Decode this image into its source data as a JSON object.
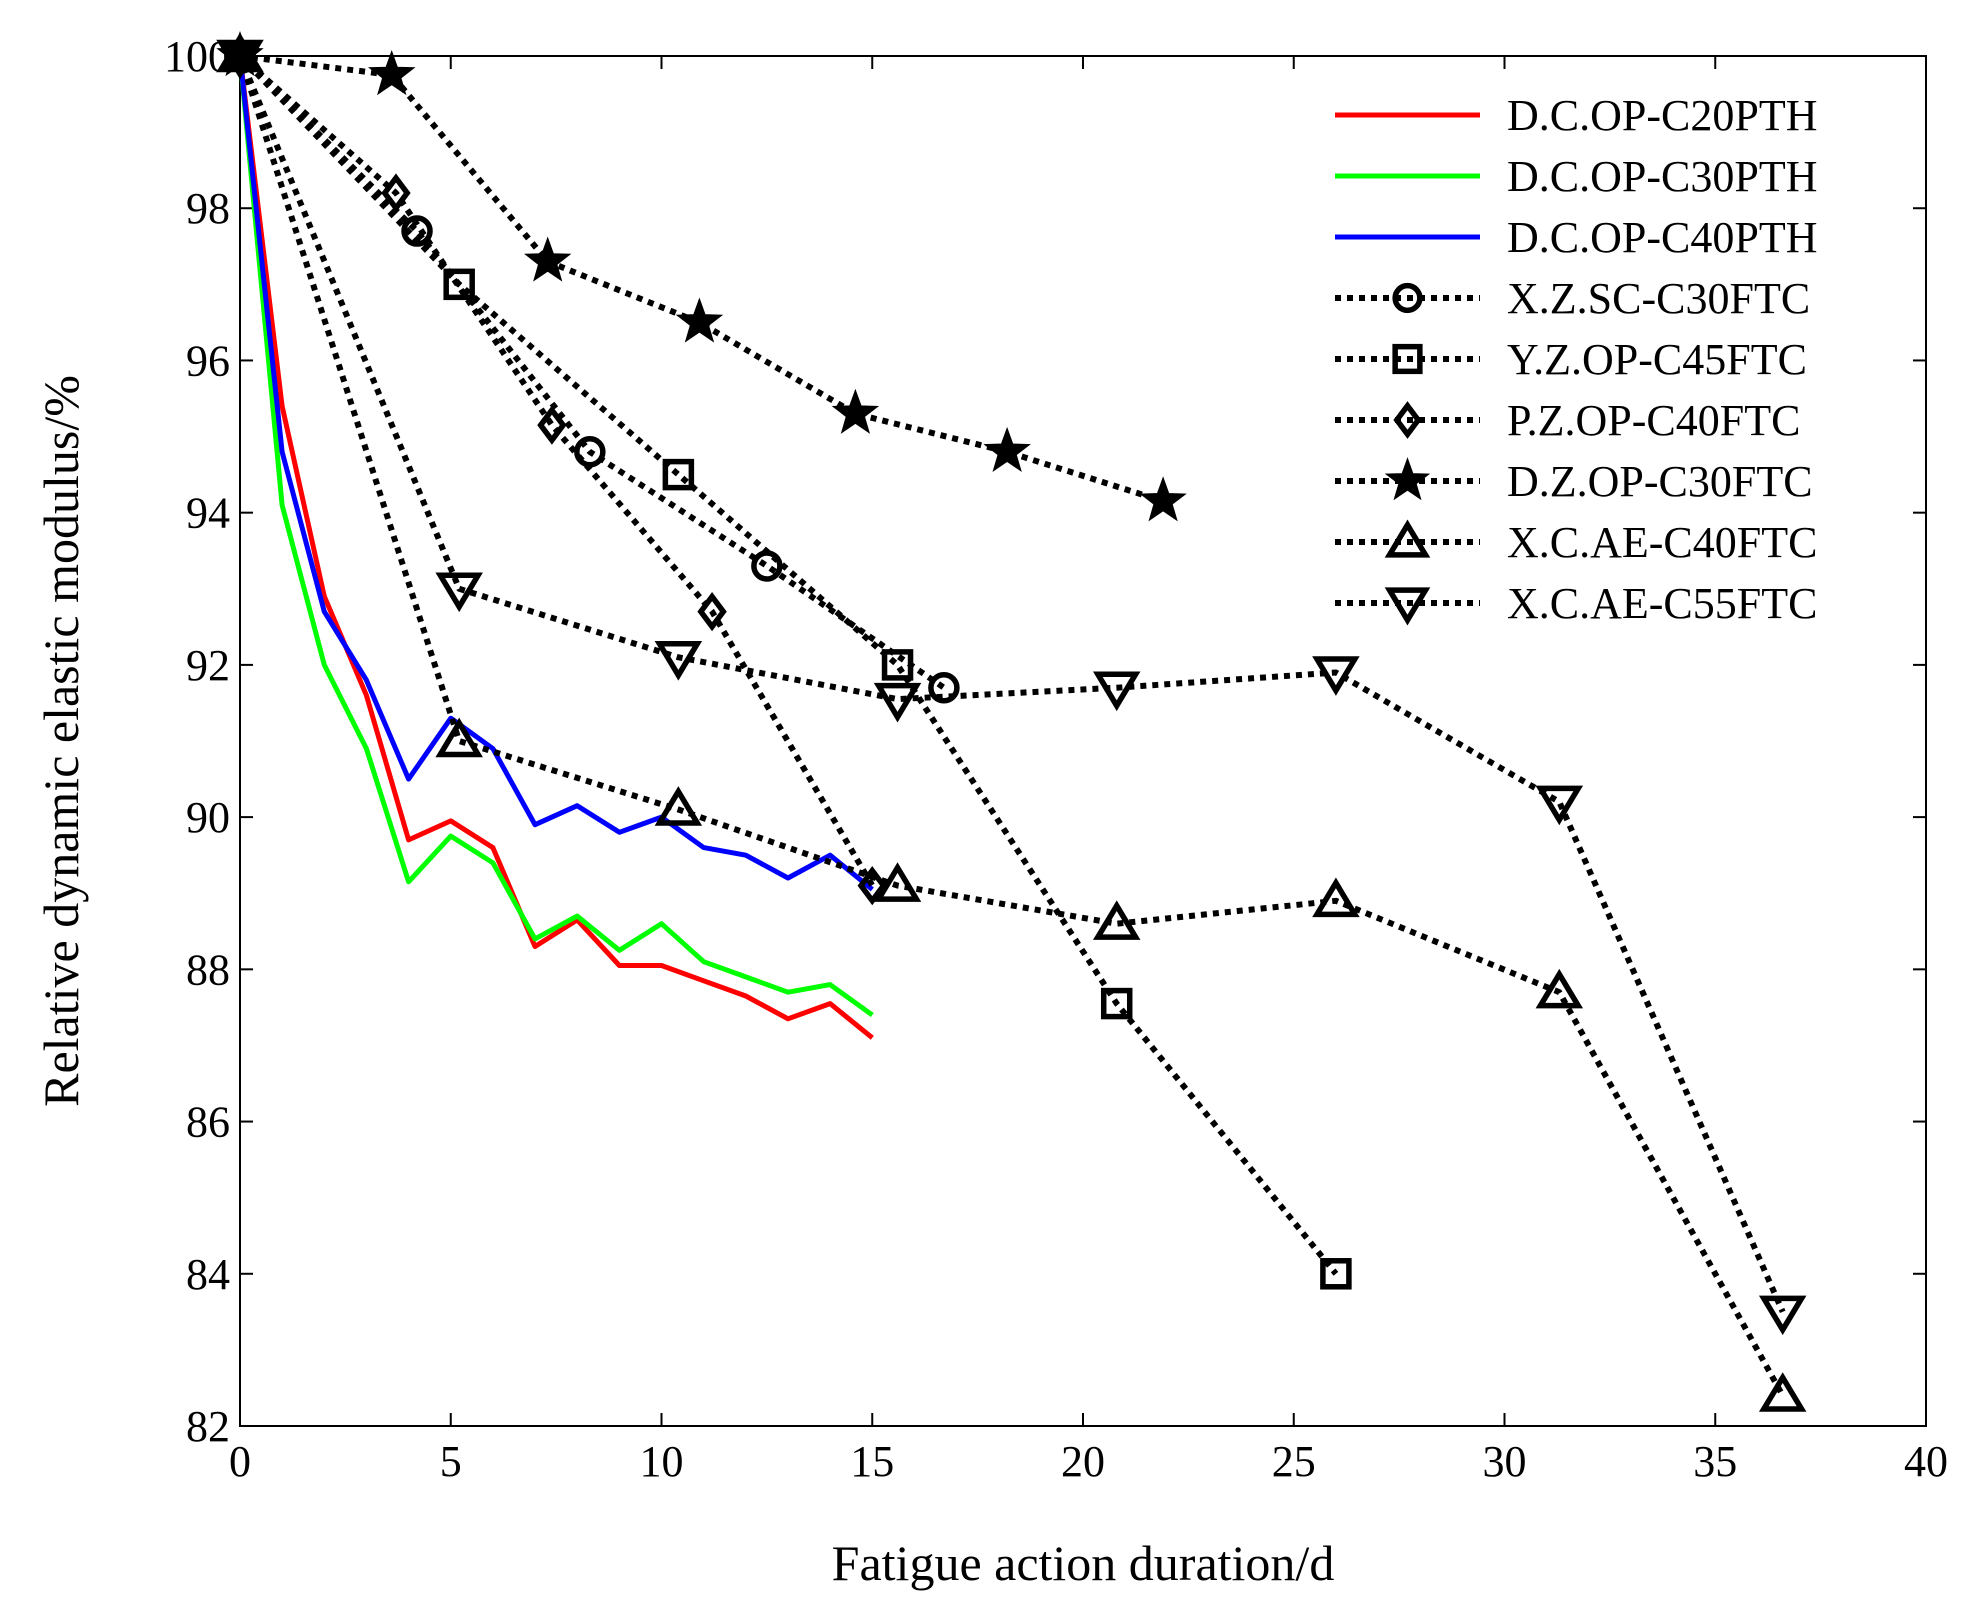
{
  "chart_data": {
    "type": "line",
    "title": "",
    "xlabel": "Fatigue action duration/d",
    "ylabel": "Relative dynamic elastic modulus/%",
    "xlim": [
      0,
      40
    ],
    "ylim": [
      82,
      100
    ],
    "xticks": [
      0,
      5,
      10,
      15,
      20,
      25,
      30,
      35,
      40
    ],
    "yticks": [
      82,
      84,
      86,
      88,
      90,
      92,
      94,
      96,
      98,
      100
    ],
    "grid": false,
    "legend_position": "top-right",
    "series": [
      {
        "name": "D.C.OP-C20PTH",
        "color": "#ff0000",
        "style": "solid",
        "marker": "none",
        "x": [
          0,
          1,
          2,
          3,
          4,
          5,
          6,
          7,
          8,
          9,
          10,
          11,
          12,
          13,
          14,
          15
        ],
        "y": [
          100,
          95.4,
          92.9,
          91.6,
          89.7,
          89.95,
          89.6,
          88.3,
          88.65,
          88.05,
          88.05,
          87.85,
          87.65,
          87.35,
          87.55,
          87.1
        ]
      },
      {
        "name": "D.C.OP-C30PTH",
        "color": "#00ff00",
        "style": "solid",
        "marker": "none",
        "x": [
          0,
          1,
          2,
          3,
          4,
          5,
          6,
          7,
          8,
          9,
          10,
          11,
          12,
          13,
          14,
          15
        ],
        "y": [
          100,
          94.1,
          92.0,
          90.9,
          89.15,
          89.75,
          89.4,
          88.4,
          88.7,
          88.25,
          88.6,
          88.1,
          87.9,
          87.7,
          87.8,
          87.4
        ]
      },
      {
        "name": "D.C.OP-C40PTH",
        "color": "#0000ff",
        "style": "solid",
        "marker": "none",
        "x": [
          0,
          1,
          2,
          3,
          4,
          5,
          6,
          7,
          8,
          9,
          10,
          11,
          12,
          13,
          14,
          15
        ],
        "y": [
          100,
          94.8,
          92.7,
          91.8,
          90.5,
          91.3,
          90.9,
          89.9,
          90.15,
          89.8,
          90.0,
          89.6,
          89.5,
          89.2,
          89.5,
          89.05
        ]
      },
      {
        "name": "X.Z.SC-C30FTC",
        "color": "#000000",
        "style": "dotted",
        "marker": "circle",
        "x": [
          0,
          4.2,
          8.3,
          12.5,
          16.7
        ],
        "y": [
          100,
          97.7,
          94.8,
          93.3,
          91.7
        ]
      },
      {
        "name": "Y.Z.OP-C45FTC",
        "color": "#000000",
        "style": "dotted",
        "marker": "square",
        "x": [
          0,
          5.2,
          10.4,
          15.6,
          20.8,
          26.0
        ],
        "y": [
          100,
          97.0,
          94.5,
          92.0,
          87.55,
          84.0
        ]
      },
      {
        "name": "P.Z.OP-C40FTC",
        "color": "#000000",
        "style": "dotted",
        "marker": "diamond",
        "x": [
          0,
          3.7,
          7.4,
          11.2,
          15.0
        ],
        "y": [
          100,
          98.2,
          95.15,
          92.7,
          89.1
        ]
      },
      {
        "name": "D.Z.OP-C30FTC",
        "color": "#000000",
        "style": "dotted",
        "marker": "star",
        "x": [
          0,
          3.6,
          7.3,
          10.9,
          14.6,
          18.2,
          21.9
        ],
        "y": [
          100,
          99.75,
          97.3,
          96.5,
          95.3,
          94.8,
          94.15
        ]
      },
      {
        "name": "X.C.AE-C40FTC",
        "color": "#000000",
        "style": "dotted",
        "marker": "triangle-up",
        "x": [
          0,
          5.2,
          10.4,
          15.6,
          20.8,
          26.0,
          31.3,
          36.6
        ],
        "y": [
          100,
          91.0,
          90.1,
          89.1,
          88.6,
          88.9,
          87.7,
          82.4
        ]
      },
      {
        "name": "X.C.AE-C55FTC",
        "color": "#000000",
        "style": "dotted",
        "marker": "triangle-down",
        "x": [
          0,
          5.2,
          10.4,
          15.6,
          20.8,
          26.0,
          31.3,
          36.6
        ],
        "y": [
          100,
          93.0,
          92.1,
          91.55,
          91.7,
          91.9,
          90.2,
          83.5
        ]
      }
    ]
  }
}
